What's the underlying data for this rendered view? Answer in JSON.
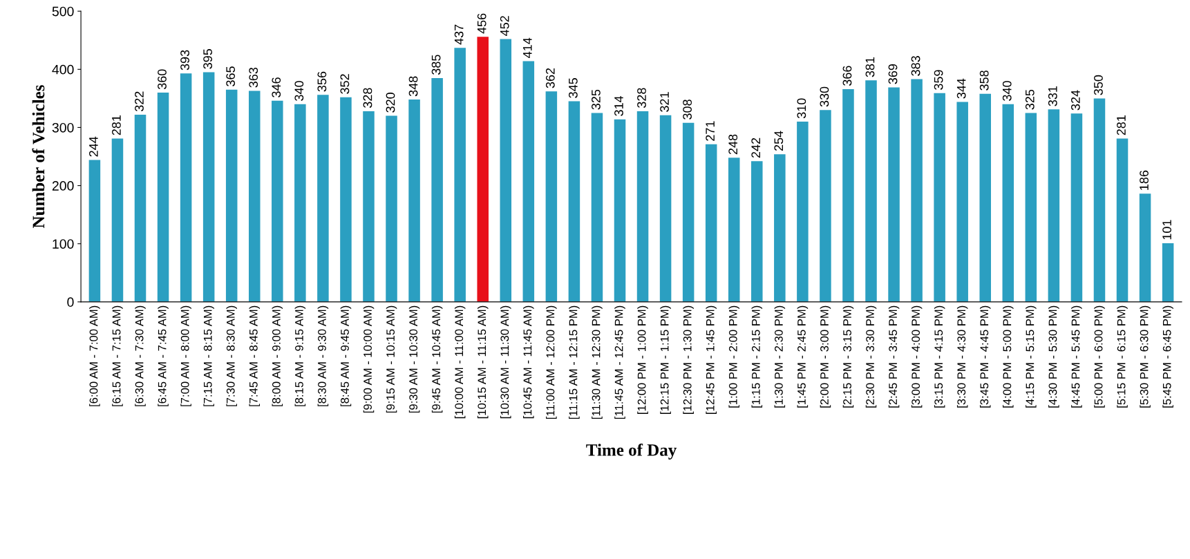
{
  "chart_data": {
    "type": "bar",
    "xlabel": "Time of Day",
    "ylabel": "Number of Vehicles",
    "categories": [
      "[6:00 AM - 7:00 AM)",
      "[6:15 AM - 7:15 AM)",
      "[6:30 AM - 7:30 AM)",
      "[6:45 AM - 7:45 AM)",
      "[7:00 AM - 8:00 AM)",
      "[7:15 AM - 8:15 AM)",
      "[7:30 AM - 8:30 AM)",
      "[7:45 AM - 8:45 AM)",
      "[8:00 AM - 9:00 AM)",
      "[8:15 AM - 9:15 AM)",
      "[8:30 AM - 9:30 AM)",
      "[8:45 AM - 9:45 AM)",
      "[9:00 AM - 10:00 AM)",
      "[9:15 AM - 10:15 AM)",
      "[9:30 AM - 10:30 AM)",
      "[9:45 AM - 10:45 AM)",
      "[10:00 AM - 11:00 AM)",
      "[10:15 AM - 11:15 AM)",
      "[10:30 AM - 11:30 AM)",
      "[10:45 AM - 11:45 AM)",
      "[11:00 AM - 12:00 PM)",
      "[11:15 AM - 12:15 PM)",
      "[11:30 AM - 12:30 PM)",
      "[11:45 AM - 12:45 PM)",
      "[12:00 PM - 1:00 PM)",
      "[12:15 PM - 1:15 PM)",
      "[12:30 PM - 1:30 PM)",
      "[12:45 PM - 1:45 PM)",
      "[1:00 PM - 2:00 PM)",
      "[1:15 PM - 2:15 PM)",
      "[1:30 PM - 2:30 PM)",
      "[1:45 PM - 2:45 PM)",
      "[2:00 PM - 3:00 PM)",
      "[2:15 PM - 3:15 PM)",
      "[2:30 PM - 3:30 PM)",
      "[2:45 PM - 3:45 PM)",
      "[3:00 PM - 4:00 PM)",
      "[3:15 PM - 4:15 PM)",
      "[3:30 PM - 4:30 PM)",
      "[3:45 PM - 4:45 PM)",
      "[4:00 PM - 5:00 PM)",
      "[4:15 PM - 5:15 PM)",
      "[4:30 PM - 5:30 PM)",
      "[4:45 PM - 5:45 PM)",
      "[5:00 PM - 6:00 PM)",
      "[5:15 PM - 6:15 PM)",
      "[5:30 PM - 6:30 PM)",
      "[5:45 PM - 6:45 PM)"
    ],
    "values": [
      244,
      281,
      322,
      360,
      393,
      395,
      365,
      363,
      346,
      340,
      356,
      352,
      328,
      320,
      348,
      385,
      437,
      456,
      452,
      414,
      362,
      345,
      325,
      314,
      328,
      321,
      308,
      271,
      248,
      242,
      254,
      310,
      330,
      366,
      381,
      369,
      383,
      359,
      344,
      358,
      340,
      325,
      331,
      324,
      350,
      281,
      186,
      101
    ],
    "colors": [
      "#2b9fc1",
      "#2b9fc1",
      "#2b9fc1",
      "#2b9fc1",
      "#2b9fc1",
      "#2b9fc1",
      "#2b9fc1",
      "#2b9fc1",
      "#2b9fc1",
      "#2b9fc1",
      "#2b9fc1",
      "#2b9fc1",
      "#2b9fc1",
      "#2b9fc1",
      "#2b9fc1",
      "#2b9fc1",
      "#2b9fc1",
      "#e8101a",
      "#2b9fc1",
      "#2b9fc1",
      "#2b9fc1",
      "#2b9fc1",
      "#2b9fc1",
      "#2b9fc1",
      "#2b9fc1",
      "#2b9fc1",
      "#2b9fc1",
      "#2b9fc1",
      "#2b9fc1",
      "#2b9fc1",
      "#2b9fc1",
      "#2b9fc1",
      "#2b9fc1",
      "#2b9fc1",
      "#2b9fc1",
      "#2b9fc1",
      "#2b9fc1",
      "#2b9fc1",
      "#2b9fc1",
      "#2b9fc1",
      "#2b9fc1",
      "#2b9fc1",
      "#2b9fc1",
      "#2b9fc1",
      "#2b9fc1",
      "#2b9fc1",
      "#2b9fc1",
      "#2b9fc1"
    ],
    "ylim": [
      0,
      500
    ],
    "yticks": [
      0,
      100,
      200,
      300,
      400,
      500
    ],
    "data_labels": true,
    "grid": false,
    "legend": false
  }
}
